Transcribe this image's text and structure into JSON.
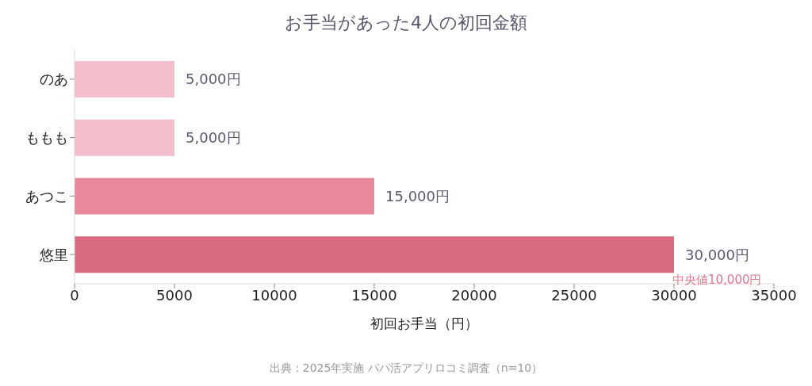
{
  "chart_data": {
    "type": "bar",
    "orientation": "horizontal",
    "title": "お手当があった4人の初回金額",
    "xlabel": "初回お手当（円）",
    "categories": [
      "のあ",
      "ももも",
      "あつこ",
      "悠里"
    ],
    "values": [
      5000,
      5000,
      15000,
      30000
    ],
    "colors": [
      "#f4bfcc",
      "#f4bfcc",
      "#e8889a",
      "#da6a80"
    ],
    "value_labels": [
      "5,000円",
      "5,000円",
      "15,000円",
      "30,000円"
    ],
    "xlim": [
      0,
      35000
    ],
    "xticks": [
      0,
      5000,
      10000,
      15000,
      20000,
      25000,
      30000,
      35000
    ],
    "grid": false,
    "annotations": [
      "中央値10,000円",
      "出典：2025年実施 パパ活アプリロコミ調査（n=10）"
    ]
  }
}
